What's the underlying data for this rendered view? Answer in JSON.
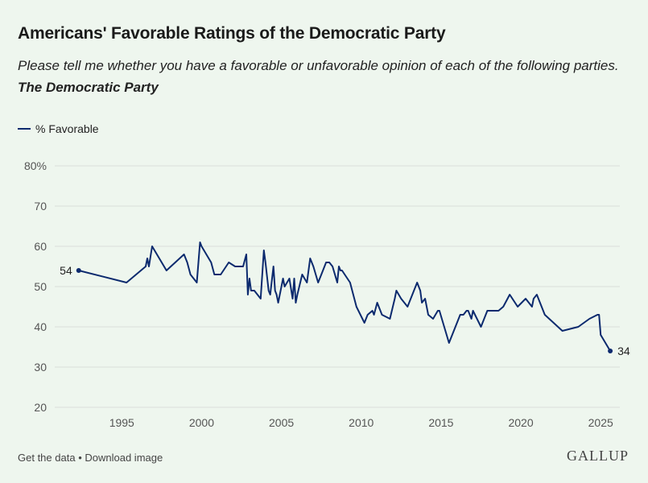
{
  "header": {
    "title": "Americans' Favorable Ratings of the Democratic Party",
    "subtitle_prefix": "Please tell me whether you have a favorable or unfavorable opinion of each of the following parties.",
    "subtitle_emphasis": "The Democratic Party"
  },
  "footer": {
    "get_data": "Get the data",
    "separator": "•",
    "download": "Download image",
    "logo": "GALLUP"
  },
  "colors": {
    "series": "#0c2a6e",
    "grid": "#d9dfd9",
    "background": "#eef6ee"
  },
  "chart_data": {
    "type": "line",
    "ylim": [
      20,
      80
    ],
    "xlim": [
      1990.8,
      2026.2
    ],
    "yticks": [
      20,
      30,
      40,
      50,
      60,
      70,
      80
    ],
    "ytick_labels": [
      "20",
      "30",
      "40",
      "50",
      "60",
      "70",
      "80%"
    ],
    "xticks": [
      1995,
      2000,
      2005,
      2010,
      2015,
      2020,
      2025
    ],
    "xtick_labels": [
      "1995",
      "2000",
      "2005",
      "2010",
      "2015",
      "2020",
      "2025"
    ],
    "grid": true,
    "legend_position": "top-left",
    "series": [
      {
        "name": "% Favorable",
        "start_label": "54",
        "end_label": "34",
        "x": [
          1992.3,
          1995.3,
          1996.5,
          1996.6,
          1996.7,
          1996.9,
          1997.8,
          1998.9,
          1999.0,
          1999.1,
          1999.3,
          1999.7,
          1999.9,
          2000.0,
          2000.6,
          2000.8,
          2001.2,
          2001.7,
          2002.1,
          2002.6,
          2002.8,
          2002.9,
          2003.0,
          2003.1,
          2003.3,
          2003.7,
          2003.9,
          2004.0,
          2004.2,
          2004.3,
          2004.5,
          2004.6,
          2004.7,
          2004.8,
          2005.1,
          2005.2,
          2005.5,
          2005.7,
          2005.8,
          2005.9,
          2006.0,
          2006.3,
          2006.6,
          2006.8,
          2006.9,
          2007.0,
          2007.3,
          2007.5,
          2007.8,
          2008.0,
          2008.2,
          2008.5,
          2008.6,
          2008.7,
          2008.8,
          2009.3,
          2009.7,
          2010.2,
          2010.4,
          2010.7,
          2010.8,
          2011.0,
          2011.3,
          2011.8,
          2012.1,
          2012.2,
          2012.5,
          2012.7,
          2012.9,
          2013.5,
          2013.7,
          2013.8,
          2014.0,
          2014.2,
          2014.5,
          2014.8,
          2014.9,
          2015.5,
          2016.2,
          2016.4,
          2016.6,
          2016.7,
          2016.8,
          2016.9,
          2017.0,
          2017.5,
          2017.9,
          2018.6,
          2018.9,
          2019.3,
          2019.8,
          2020.3,
          2020.7,
          2020.8,
          2021.0,
          2021.5,
          2022.6,
          2023.6,
          2024.3,
          2024.8,
          2024.9,
          2025.0,
          2025.6
        ],
        "values": [
          54,
          51,
          55,
          57,
          55,
          60,
          54,
          58,
          57,
          56,
          53,
          51,
          61,
          60,
          56,
          53,
          53,
          56,
          55,
          55,
          58,
          48,
          52,
          49,
          49,
          47,
          59,
          56,
          49,
          48,
          55,
          49,
          48,
          46,
          52,
          50,
          52,
          47,
          52,
          46,
          48,
          53,
          51,
          57,
          56,
          55,
          51,
          53,
          56,
          56,
          55,
          51,
          55,
          54,
          54,
          51,
          45,
          41,
          43,
          44,
          43,
          46,
          43,
          42,
          47,
          49,
          47,
          46,
          45,
          51,
          49,
          46,
          47,
          43,
          42,
          44,
          44,
          36,
          43,
          43,
          44,
          44,
          43,
          42,
          44,
          40,
          44,
          44,
          45,
          48,
          45,
          47,
          45,
          47,
          48,
          43,
          39,
          40,
          42,
          43,
          43,
          38,
          34
        ]
      }
    ]
  }
}
